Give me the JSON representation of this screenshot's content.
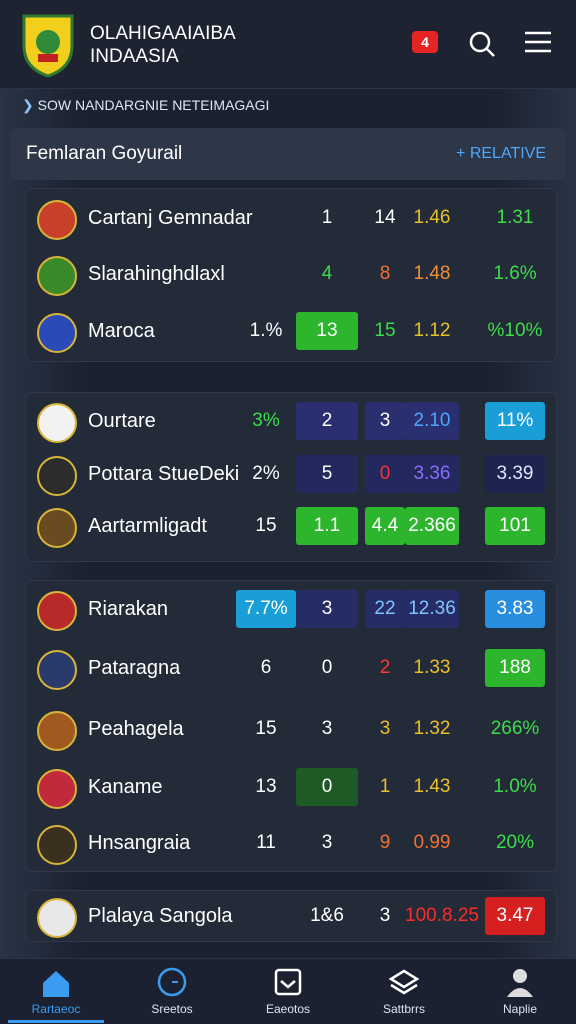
{
  "header": {
    "title": [
      "OLAHIGAAIAIBA",
      "INDAASIA"
    ],
    "badge": "4"
  },
  "subheader": "SOW NANDARGNIE NETEIMAGAGI",
  "panel": {
    "title": "Femlaran Goyurail",
    "action": "+ RELATIVE"
  },
  "groups": [
    {
      "rows": [
        {
          "name": "Cartanj Gemnadar",
          "cells": [
            {
              "text": "1",
              "color": "#ffffff"
            },
            {
              "text": "14",
              "color": "#ffffff"
            },
            {
              "text": "1.46",
              "color": "#e8c02a"
            },
            {
              "text": "1.31",
              "color": "#3ddc4a"
            }
          ]
        },
        {
          "name": "Slarahinghdlaxl",
          "cells": [
            {
              "text": "4",
              "color": "#3ddc4a"
            },
            {
              "text": "8",
              "color": "#f07030"
            },
            {
              "text": "1.48",
              "color": "#f0903a"
            },
            {
              "text": "1.6%",
              "color": "#3ddc4a"
            }
          ]
        },
        {
          "name": "Maroca",
          "cells": [
            {
              "text": "1.%",
              "color": "#ffffff"
            },
            {
              "text": "13",
              "color": "#ffffff",
              "bg": "#2db52d"
            },
            {
              "text": "15",
              "color": "#3ddc4a"
            },
            {
              "text": "1.12",
              "color": "#e8c02a"
            },
            {
              "text": "%10%",
              "color": "#3ddc4a"
            }
          ]
        }
      ]
    },
    {
      "rows": [
        {
          "name": "Ourtare",
          "cells": [
            {
              "text": "3%",
              "color": "#3ddc4a"
            },
            {
              "text": "2",
              "color": "#ffffff",
              "bg": "#2a2f70"
            },
            {
              "text": "3",
              "color": "#ffffff",
              "bg": "#2a2f70"
            },
            {
              "text": "2.10",
              "color": "#4aa8ff",
              "bg": "#2a2f70"
            },
            {
              "text": "11%",
              "color": "#ffffff",
              "bg": "#1a9ed8"
            }
          ]
        },
        {
          "name": "Pottara StueDeki",
          "cells": [
            {
              "text": "2%",
              "color": "#ffffff"
            },
            {
              "text": "5",
              "color": "#ffffff",
              "bg": "#23285e"
            },
            {
              "text": "0",
              "color": "#ff3030",
              "bg": "#23285e"
            },
            {
              "text": "3.36",
              "color": "#8a6cff",
              "bg": "#23285e"
            },
            {
              "text": "3.39",
              "color": "#dde4ff",
              "bg": "#1e2450"
            }
          ]
        },
        {
          "name": "Aartarmligadt",
          "cells": [
            {
              "text": "15",
              "color": "#ffffff"
            },
            {
              "text": "1.1",
              "color": "#ffffff",
              "bg": "#2db52d"
            },
            {
              "text": "4.4",
              "color": "#ffffff",
              "bg": "#2db52d"
            },
            {
              "text": "2.366",
              "color": "#ffffff",
              "bg": "#2db52d"
            },
            {
              "text": "101",
              "color": "#ffffff",
              "bg": "#2db52d"
            }
          ]
        }
      ]
    },
    {
      "rows": [
        {
          "name": "Riarakan",
          "cells": [
            {
              "text": "7.7%",
              "color": "#ffffff",
              "bg": "#1a9ed8"
            },
            {
              "text": "3",
              "color": "#ffffff",
              "bg": "#262c66"
            },
            {
              "text": "22",
              "color": "#7ec4ff",
              "bg": "#262c66"
            },
            {
              "text": "12.36",
              "color": "#7ec4ff",
              "bg": "#262c66"
            },
            {
              "text": "3.83",
              "color": "#ffffff",
              "bg": "#2a8ee0"
            }
          ]
        },
        {
          "name": "Pataragna",
          "cells": [
            {
              "text": "6",
              "color": "#ffffff"
            },
            {
              "text": "0",
              "color": "#ffffff"
            },
            {
              "text": "2",
              "color": "#ff3a2a"
            },
            {
              "text": "1.33",
              "color": "#e8c02a"
            },
            {
              "text": "188",
              "color": "#ffffff",
              "bg": "#2db52d"
            }
          ]
        },
        {
          "name": "Peahagela",
          "cells": [
            {
              "text": "15",
              "color": "#ffffff"
            },
            {
              "text": "3",
              "color": "#ffffff"
            },
            {
              "text": "3",
              "color": "#e8c02a"
            },
            {
              "text": "1.32",
              "color": "#e8c02a"
            },
            {
              "text": "266%",
              "color": "#3ddc4a"
            }
          ]
        },
        {
          "name": "Kaname",
          "cells": [
            {
              "text": "13",
              "color": "#ffffff"
            },
            {
              "text": "0",
              "color": "#ffffff",
              "bg": "#1d5a25"
            },
            {
              "text": "1",
              "color": "#e8c02a"
            },
            {
              "text": "1.43",
              "color": "#e8c02a"
            },
            {
              "text": "1.0%",
              "color": "#3ddc4a"
            }
          ]
        },
        {
          "name": "Hnsangraia",
          "cells": [
            {
              "text": "11",
              "color": "#ffffff"
            },
            {
              "text": "3",
              "color": "#ffffff"
            },
            {
              "text": "9",
              "color": "#f07030"
            },
            {
              "text": "0.99",
              "color": "#f07030"
            },
            {
              "text": "20%",
              "color": "#3ddc4a"
            }
          ]
        }
      ]
    },
    {
      "rows": [
        {
          "name": "Plalaya Sangola",
          "cells": [
            {
              "text": "1&6",
              "color": "#ffffff"
            },
            {
              "text": "3",
              "color": "#ffffff"
            },
            {
              "text": "100.8.25",
              "color": "#ff2a2a"
            },
            {
              "text": "3.47",
              "color": "#ffffff",
              "bg": "#d62020"
            }
          ]
        }
      ]
    }
  ],
  "nav": [
    "Rartaeoc",
    "Sreetos",
    "Eaeotos",
    "Sattbrrs",
    "Naplie"
  ]
}
